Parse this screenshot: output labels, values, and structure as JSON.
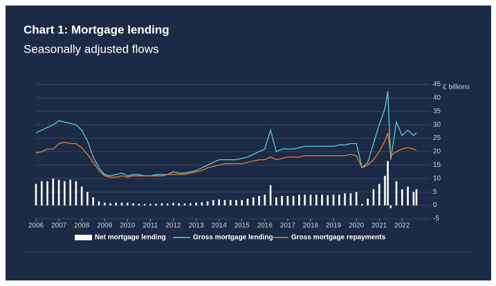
{
  "chart_data": {
    "type": "line",
    "title": "Chart 1: Mortgage lending",
    "subtitle": "Seasonally adjusted flows",
    "y_axis_label": "£ billions",
    "x": [
      2006,
      2006.25,
      2006.5,
      2006.75,
      2007,
      2007.25,
      2007.5,
      2007.75,
      2008,
      2008.25,
      2008.5,
      2008.75,
      2009,
      2009.25,
      2009.5,
      2009.75,
      2010,
      2010.25,
      2010.5,
      2010.75,
      2011,
      2011.25,
      2011.5,
      2011.75,
      2012,
      2012.25,
      2012.5,
      2012.75,
      2013,
      2013.25,
      2013.5,
      2013.75,
      2014,
      2014.25,
      2014.5,
      2014.75,
      2015,
      2015.25,
      2015.5,
      2015.75,
      2016,
      2016.25,
      2016.5,
      2016.75,
      2017,
      2017.25,
      2017.5,
      2017.75,
      2018,
      2018.25,
      2018.5,
      2018.75,
      2019,
      2019.25,
      2019.5,
      2019.75,
      2020,
      2020.25,
      2020.5,
      2020.75,
      2021,
      2021.25,
      2021.375,
      2021.5,
      2021.75,
      2022,
      2022.25,
      2022.5,
      2022.625
    ],
    "series": [
      {
        "name": "Net mortgage lending",
        "color": "#ffffff",
        "kind": "bar",
        "values": [
          8,
          9,
          9,
          10,
          9.5,
          9,
          9.5,
          9,
          7,
          5,
          3,
          1.5,
          1,
          0.8,
          1,
          1,
          1,
          0.8,
          0.6,
          0.5,
          0.5,
          0.6,
          0.8,
          0.7,
          1,
          0.8,
          0.7,
          0.8,
          1,
          1.2,
          1.5,
          2,
          2.2,
          2,
          2,
          2,
          2,
          2.5,
          3,
          3.5,
          4,
          7.5,
          3,
          3.5,
          3.5,
          3.5,
          4,
          4,
          4,
          4,
          4,
          3.8,
          4,
          4,
          4.5,
          4.5,
          5,
          0.5,
          2.5,
          6,
          8,
          11,
          16.5,
          -1,
          9,
          6,
          7,
          5,
          6
        ]
      },
      {
        "name": "Gross mortgage lending",
        "color": "#5ecfd8",
        "kind": "line",
        "values": [
          27,
          28,
          29,
          30,
          31.5,
          31,
          30.5,
          30,
          28,
          24,
          18,
          14,
          11.5,
          11,
          11.5,
          12,
          11,
          11.5,
          11.5,
          11,
          11,
          11.5,
          11.5,
          11.5,
          12.5,
          12,
          12,
          12.5,
          13,
          14,
          15,
          16,
          17,
          17,
          17,
          17,
          17.5,
          18,
          19,
          20,
          21,
          28,
          20,
          21,
          21,
          21,
          21.5,
          22,
          22,
          22,
          22,
          22,
          22,
          22.5,
          22.5,
          23,
          23,
          14,
          16,
          23,
          30,
          36,
          42.5,
          17,
          31,
          26,
          28,
          26,
          27
        ]
      },
      {
        "name": "Gross mortgage repayments",
        "color": "#e8822a",
        "kind": "line",
        "values": [
          19.5,
          20,
          21,
          21,
          23,
          23.5,
          23,
          23,
          21.5,
          19,
          16,
          13,
          11,
          10.5,
          10.5,
          11,
          10.5,
          11,
          11,
          11,
          11,
          11,
          11,
          11.5,
          11.5,
          11.5,
          11.5,
          12,
          12.5,
          13,
          14,
          14.5,
          15,
          15.5,
          15.5,
          15.5,
          15.5,
          16,
          16.5,
          17,
          17,
          18,
          17,
          17.5,
          18,
          18,
          18,
          18.5,
          18.5,
          18.5,
          18.5,
          18.5,
          18.5,
          18.5,
          18.5,
          19,
          18.5,
          14,
          15,
          17,
          20,
          24,
          27,
          18.5,
          20,
          21,
          21.5,
          21,
          20.5
        ]
      }
    ],
    "xlim": [
      2006,
      2023.2
    ],
    "xticks": [
      2006,
      2007,
      2008,
      2009,
      2010,
      2011,
      2012,
      2013,
      2014,
      2015,
      2016,
      2017,
      2018,
      2019,
      2020,
      2021,
      2022
    ],
    "ylim": [
      -5,
      45
    ],
    "yticks": [
      -5,
      0,
      5,
      10,
      15,
      20,
      25,
      30,
      35,
      40,
      45
    ],
    "grid": true
  }
}
